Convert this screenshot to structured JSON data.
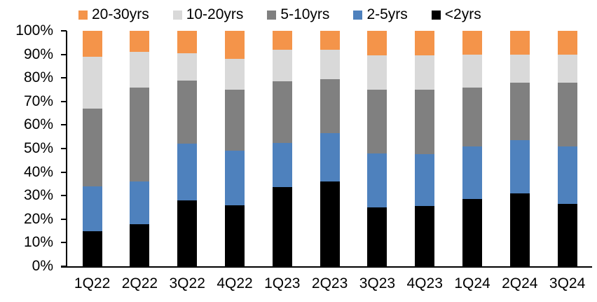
{
  "chart_data": {
    "type": "bar",
    "variant": "100%-stacked-column",
    "title": "",
    "xlabel": "",
    "ylabel": "",
    "categories": [
      "1Q22",
      "2Q22",
      "3Q22",
      "4Q22",
      "1Q23",
      "2Q23",
      "3Q23",
      "4Q23",
      "1Q24",
      "2Q24",
      "3Q24"
    ],
    "series": [
      {
        "name": "<2yrs",
        "color": "#000000",
        "values": [
          15,
          18,
          28,
          26,
          33.5,
          36,
          25,
          25.5,
          28.5,
          31,
          26.5
        ]
      },
      {
        "name": "2-5yrs",
        "color": "#4E81BD",
        "values": [
          19,
          18,
          24,
          23,
          19,
          20.5,
          23,
          22,
          22.5,
          22.5,
          24.5
        ]
      },
      {
        "name": "5-10yrs",
        "color": "#808080",
        "values": [
          33,
          40,
          27,
          26,
          26,
          23,
          27,
          27.5,
          25,
          24.5,
          27
        ]
      },
      {
        "name": "10-20yrs",
        "color": "#D9D9D9",
        "values": [
          22,
          15,
          11.5,
          13,
          13.5,
          12.5,
          14.5,
          14.5,
          14,
          12,
          12
        ]
      },
      {
        "name": "20-30yrs",
        "color": "#F4944A",
        "values": [
          11,
          9,
          9.5,
          12,
          8,
          8,
          10.5,
          10.5,
          10,
          10,
          10
        ]
      }
    ],
    "legend": {
      "position": "top",
      "order": [
        "20-30yrs",
        "10-20yrs",
        "5-10yrs",
        "2-5yrs",
        "<2yrs"
      ]
    },
    "y_axis": {
      "min": 0,
      "max": 100,
      "tick_step": 10,
      "ticks": [
        "0%",
        "10%",
        "20%",
        "30%",
        "40%",
        "50%",
        "60%",
        "70%",
        "80%",
        "90%",
        "100%"
      ],
      "grid": false
    },
    "axis_color": "#000000",
    "background_color": "#FFFFFF"
  }
}
